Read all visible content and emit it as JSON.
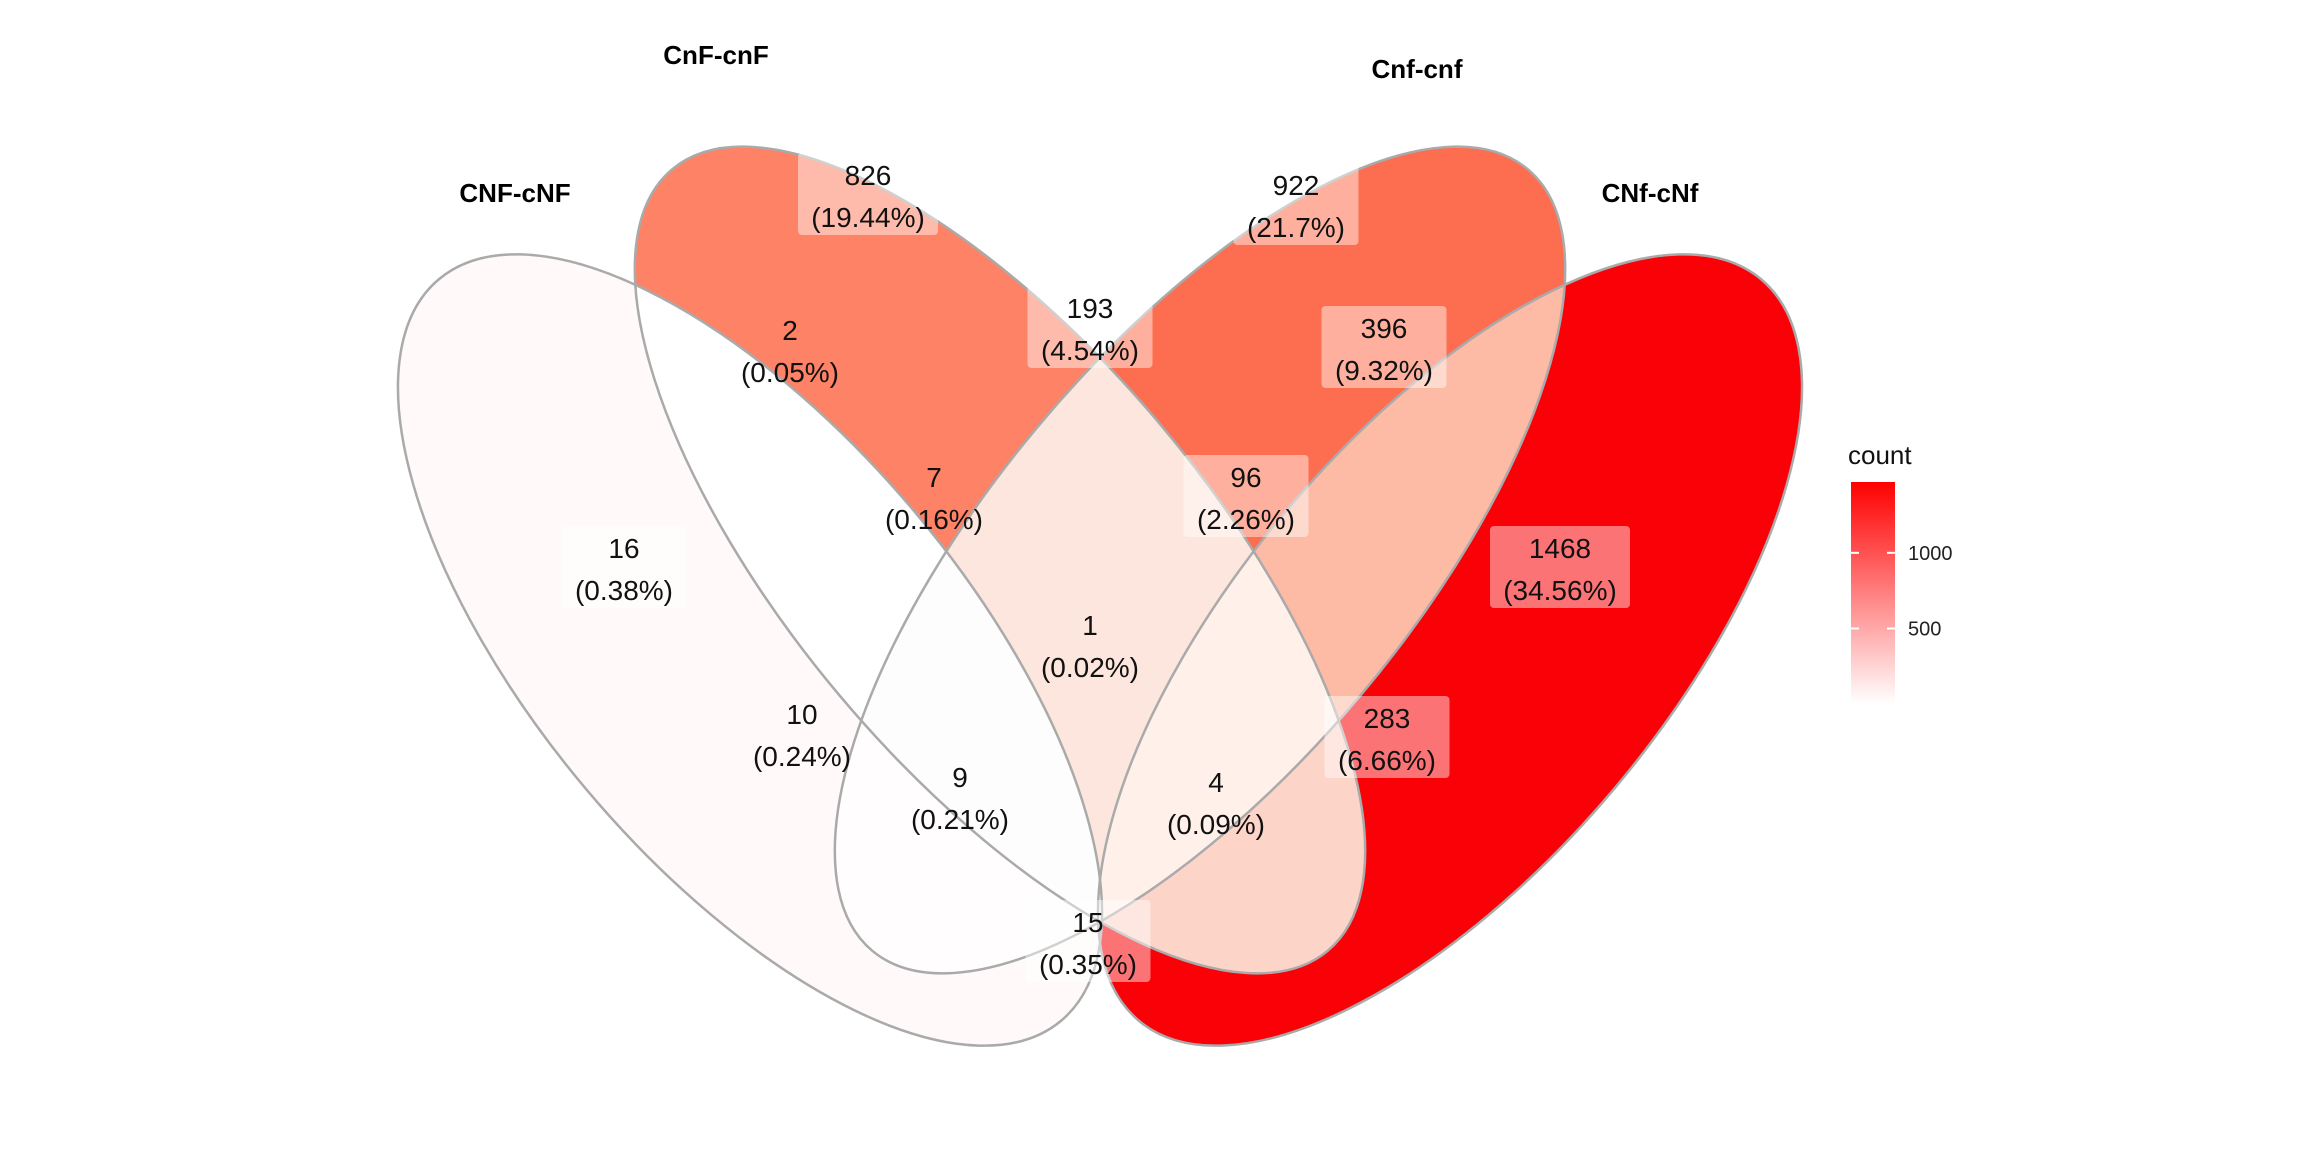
{
  "sets": [
    {
      "id": "A",
      "name": "CNF-cNF"
    },
    {
      "id": "B",
      "name": "CnF-cnF"
    },
    {
      "id": "C",
      "name": "Cnf-cnf"
    },
    {
      "id": "D",
      "name": "CNf-cNf"
    }
  ],
  "regions": [
    {
      "key": "A",
      "count": "16",
      "percent": "(0.38%)",
      "value": 16,
      "fill": "#fff9f9"
    },
    {
      "key": "B",
      "count": "826",
      "percent": "(19.44%)",
      "value": 826,
      "fill": "#fd8266"
    },
    {
      "key": "C",
      "count": "922",
      "percent": "(21.7%)",
      "value": 922,
      "fill": "#fd6d4f"
    },
    {
      "key": "D",
      "count": "1468",
      "percent": "(34.56%)",
      "value": 1468,
      "fill": "#fa0007"
    },
    {
      "key": "AB",
      "count": "2",
      "percent": "(0.05%)",
      "value": 2,
      "fill": "#ffffff"
    },
    {
      "key": "BC",
      "count": "193",
      "percent": "(4.54%)",
      "value": 193,
      "fill": "#fde6dd"
    },
    {
      "key": "CD",
      "count": "396",
      "percent": "(9.32%)",
      "value": 396,
      "fill": "#fdbaa5"
    },
    {
      "key": "ABC",
      "count": "7",
      "percent": "(0.16%)",
      "value": 7,
      "fill": "#fdfdfd"
    },
    {
      "key": "BCD",
      "count": "96",
      "percent": "(2.26%)",
      "value": 96,
      "fill": "#fff0ea"
    },
    {
      "key": "ABCD",
      "count": "1",
      "percent": "(0.02%)",
      "value": 1,
      "fill": "#ffffff"
    },
    {
      "key": "AC",
      "count": "10",
      "percent": "(0.24%)",
      "value": 10,
      "fill": "#fffdfd"
    },
    {
      "key": "BD",
      "count": "283",
      "percent": "(6.66%)",
      "value": 283,
      "fill": "#fdd4c8"
    },
    {
      "key": "ACD",
      "count": "9",
      "percent": "(0.21%)",
      "value": 9,
      "fill": "#fffdfd"
    },
    {
      "key": "ABD",
      "count": "4",
      "percent": "(0.09%)",
      "value": 4,
      "fill": "#ffffff"
    },
    {
      "key": "AD",
      "count": "15",
      "percent": "(0.35%)",
      "value": 15,
      "fill": "#fffbfb"
    }
  ],
  "legend": {
    "title": "count",
    "ticks": [
      {
        "label": "1000",
        "value": 1000
      },
      {
        "label": "500",
        "value": 500
      }
    ],
    "min": 1,
    "max": 1468,
    "color_low": "#ffffff",
    "color_high": "#ff0000"
  },
  "colors": {
    "outline": "#aaaaaa"
  }
}
